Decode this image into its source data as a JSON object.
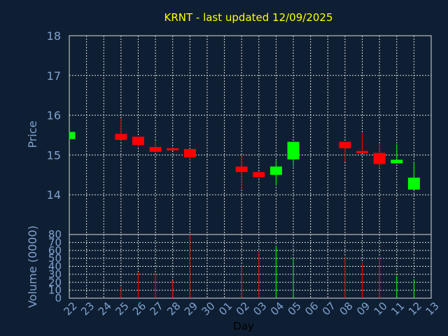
{
  "chart_data": {
    "type": "candlestick",
    "title": "KRNT - last updated 12/09/2025",
    "xlabel": "Day",
    "days": [
      "22",
      "23",
      "24",
      "25",
      "26",
      "27",
      "28",
      "29",
      "30",
      "01",
      "02",
      "03",
      "04",
      "05",
      "06",
      "07",
      "08",
      "09",
      "10",
      "11",
      "12",
      "13"
    ],
    "price_panel": {
      "ylabel": "Price",
      "ylim": [
        13,
        18
      ],
      "yticks": [
        "14",
        "15",
        "16",
        "17",
        "18"
      ],
      "candles": [
        {
          "day": "22",
          "open": 15.4,
          "high": 15.58,
          "low": 15.4,
          "close": 15.58
        },
        {
          "day": "25",
          "open": 15.53,
          "high": 15.92,
          "low": 15.37,
          "close": 15.38
        },
        {
          "day": "26",
          "open": 15.46,
          "high": 15.46,
          "low": 15.2,
          "close": 15.25
        },
        {
          "day": "27",
          "open": 15.2,
          "high": 15.35,
          "low": 15.04,
          "close": 15.08
        },
        {
          "day": "28",
          "open": 15.17,
          "high": 15.17,
          "low": 15.14,
          "close": 15.15
        },
        {
          "day": "29",
          "open": 15.15,
          "high": 15.15,
          "low": 14.87,
          "close": 14.94
        },
        {
          "day": "02",
          "open": 14.71,
          "high": 15.0,
          "low": 14.13,
          "close": 14.57
        },
        {
          "day": "03",
          "open": 14.57,
          "high": 14.57,
          "low": 14.44,
          "close": 14.44
        },
        {
          "day": "04",
          "open": 14.5,
          "high": 14.86,
          "low": 14.23,
          "close": 14.71
        },
        {
          "day": "05",
          "open": 14.89,
          "high": 15.33,
          "low": 14.71,
          "close": 15.33
        },
        {
          "day": "08",
          "open": 15.33,
          "high": 15.33,
          "low": 14.83,
          "close": 15.17
        },
        {
          "day": "09",
          "open": 15.1,
          "high": 15.55,
          "low": 15.05,
          "close": 15.05
        },
        {
          "day": "10",
          "open": 15.05,
          "high": 15.28,
          "low": 14.67,
          "close": 14.77
        },
        {
          "day": "11",
          "open": 14.79,
          "high": 15.27,
          "low": 14.79,
          "close": 14.88
        },
        {
          "day": "12",
          "open": 14.13,
          "high": 14.81,
          "low": 14.13,
          "close": 14.43
        }
      ]
    },
    "volume_panel": {
      "ylabel": "Volume (0000)",
      "ylim": [
        0,
        80
      ],
      "yticks": [
        "0",
        "10",
        "20",
        "30",
        "40",
        "50",
        "60",
        "70",
        "80"
      ],
      "bars": [
        {
          "day": "22",
          "value": 0,
          "direction": "up"
        },
        {
          "day": "25",
          "value": 14,
          "direction": "down"
        },
        {
          "day": "26",
          "value": 32,
          "direction": "down"
        },
        {
          "day": "27",
          "value": 32,
          "direction": "down"
        },
        {
          "day": "28",
          "value": 22,
          "direction": "down"
        },
        {
          "day": "29",
          "value": 80,
          "direction": "down"
        },
        {
          "day": "02",
          "value": 42,
          "direction": "down"
        },
        {
          "day": "03",
          "value": 59,
          "direction": "down"
        },
        {
          "day": "04",
          "value": 66,
          "direction": "up"
        },
        {
          "day": "05",
          "value": 51,
          "direction": "up"
        },
        {
          "day": "08",
          "value": 52,
          "direction": "down"
        },
        {
          "day": "09",
          "value": 45,
          "direction": "down"
        },
        {
          "day": "10",
          "value": 52,
          "direction": "down"
        },
        {
          "day": "11",
          "value": 28,
          "direction": "up"
        },
        {
          "day": "12",
          "value": 24,
          "direction": "up"
        }
      ]
    },
    "grid": true,
    "colors": {
      "background": "#0f1f33",
      "up": "#00ff00",
      "down": "#ff0000",
      "grid": "#d8d8d8",
      "axis_text": "#7fa2cf",
      "title": "#ffff00",
      "xlabel": "#000000"
    }
  }
}
